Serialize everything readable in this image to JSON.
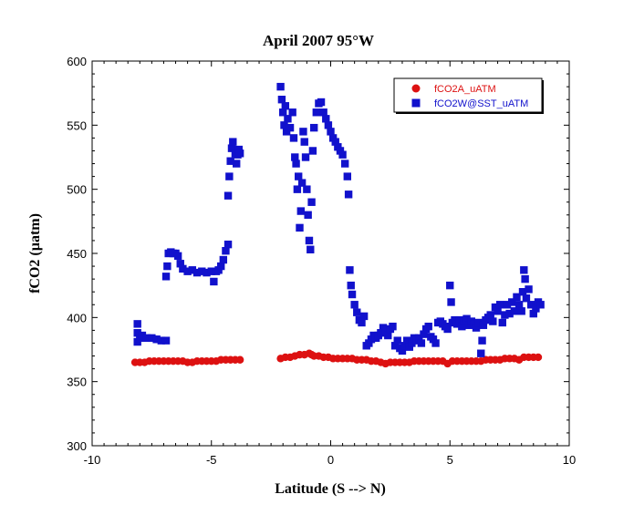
{
  "chart_data": {
    "type": "scatter",
    "title": "April 2007 95°W",
    "xlabel": "Latitude (S --> N)",
    "ylabel": "fCO2 (µatm)",
    "xlim": [
      -10,
      10
    ],
    "ylim": [
      300,
      600
    ],
    "xticks": [
      -10,
      -5,
      0,
      5,
      10
    ],
    "yticks": [
      300,
      350,
      400,
      450,
      500,
      550,
      600
    ],
    "grid": false,
    "legend_position": "top-right",
    "series": [
      {
        "name": "fCO2A_uATM",
        "color": "#dd1111",
        "marker": "circle",
        "points": [
          [
            -8.2,
            365
          ],
          [
            -8.0,
            365
          ],
          [
            -7.8,
            365
          ],
          [
            -7.6,
            366
          ],
          [
            -7.4,
            366
          ],
          [
            -7.2,
            366
          ],
          [
            -7.0,
            366
          ],
          [
            -6.8,
            366
          ],
          [
            -6.6,
            366
          ],
          [
            -6.4,
            366
          ],
          [
            -6.2,
            366
          ],
          [
            -6.0,
            365
          ],
          [
            -5.8,
            365
          ],
          [
            -5.6,
            366
          ],
          [
            -5.4,
            366
          ],
          [
            -5.2,
            366
          ],
          [
            -5.0,
            366
          ],
          [
            -4.8,
            366
          ],
          [
            -4.6,
            367
          ],
          [
            -4.4,
            367
          ],
          [
            -4.2,
            367
          ],
          [
            -4.0,
            367
          ],
          [
            -3.8,
            367
          ],
          [
            -2.1,
            368
          ],
          [
            -1.9,
            369
          ],
          [
            -1.7,
            369
          ],
          [
            -1.5,
            370
          ],
          [
            -1.3,
            371
          ],
          [
            -1.1,
            371
          ],
          [
            -0.9,
            372
          ],
          [
            -0.8,
            371
          ],
          [
            -0.7,
            370
          ],
          [
            -0.5,
            370
          ],
          [
            -0.3,
            369
          ],
          [
            -0.1,
            369
          ],
          [
            0.1,
            368
          ],
          [
            0.3,
            368
          ],
          [
            0.5,
            368
          ],
          [
            0.7,
            368
          ],
          [
            0.9,
            368
          ],
          [
            1.1,
            367
          ],
          [
            1.3,
            367
          ],
          [
            1.5,
            367
          ],
          [
            1.7,
            366
          ],
          [
            1.9,
            366
          ],
          [
            2.1,
            365
          ],
          [
            2.3,
            364
          ],
          [
            2.5,
            365
          ],
          [
            2.7,
            365
          ],
          [
            2.9,
            365
          ],
          [
            3.1,
            365
          ],
          [
            3.3,
            365
          ],
          [
            3.5,
            366
          ],
          [
            3.7,
            366
          ],
          [
            3.9,
            366
          ],
          [
            4.1,
            366
          ],
          [
            4.3,
            366
          ],
          [
            4.5,
            366
          ],
          [
            4.7,
            366
          ],
          [
            4.9,
            364
          ],
          [
            5.1,
            366
          ],
          [
            5.3,
            366
          ],
          [
            5.5,
            366
          ],
          [
            5.7,
            366
          ],
          [
            5.9,
            366
          ],
          [
            6.1,
            366
          ],
          [
            6.3,
            366
          ],
          [
            6.5,
            367
          ],
          [
            6.7,
            367
          ],
          [
            6.9,
            367
          ],
          [
            7.1,
            367
          ],
          [
            7.3,
            368
          ],
          [
            7.5,
            368
          ],
          [
            7.7,
            368
          ],
          [
            7.9,
            367
          ],
          [
            8.1,
            369
          ],
          [
            8.3,
            369
          ],
          [
            8.5,
            369
          ],
          [
            8.7,
            369
          ]
        ]
      },
      {
        "name": "fCO2W@SST_uATM",
        "color": "#1111cc",
        "marker": "square",
        "points": [
          [
            -8.1,
            395
          ],
          [
            -8.1,
            388
          ],
          [
            -8.1,
            381
          ],
          [
            -8.0,
            384
          ],
          [
            -7.9,
            386
          ],
          [
            -7.7,
            384
          ],
          [
            -7.5,
            384
          ],
          [
            -7.3,
            383
          ],
          [
            -7.1,
            382
          ],
          [
            -6.9,
            382
          ],
          [
            -6.9,
            432
          ],
          [
            -6.85,
            440
          ],
          [
            -6.8,
            450
          ],
          [
            -6.7,
            451
          ],
          [
            -6.6,
            450
          ],
          [
            -6.5,
            450
          ],
          [
            -6.4,
            448
          ],
          [
            -6.3,
            442
          ],
          [
            -6.2,
            438
          ],
          [
            -6.0,
            436
          ],
          [
            -5.8,
            437
          ],
          [
            -5.6,
            435
          ],
          [
            -5.4,
            436
          ],
          [
            -5.2,
            435
          ],
          [
            -5.0,
            436
          ],
          [
            -4.9,
            428
          ],
          [
            -4.8,
            436
          ],
          [
            -4.7,
            437
          ],
          [
            -4.6,
            440
          ],
          [
            -4.5,
            445
          ],
          [
            -4.4,
            452
          ],
          [
            -4.3,
            457
          ],
          [
            -4.3,
            495
          ],
          [
            -4.25,
            510
          ],
          [
            -4.2,
            522
          ],
          [
            -4.15,
            532
          ],
          [
            -4.1,
            537
          ],
          [
            -4.0,
            528
          ],
          [
            -3.95,
            520
          ],
          [
            -3.9,
            527
          ],
          [
            -3.85,
            531
          ],
          [
            -3.8,
            528
          ],
          [
            -2.1,
            580
          ],
          [
            -2.05,
            570
          ],
          [
            -2.0,
            560
          ],
          [
            -1.95,
            550
          ],
          [
            -1.9,
            565
          ],
          [
            -1.85,
            545
          ],
          [
            -1.8,
            555
          ],
          [
            -1.7,
            548
          ],
          [
            -1.6,
            560
          ],
          [
            -1.55,
            540
          ],
          [
            -1.5,
            525
          ],
          [
            -1.45,
            520
          ],
          [
            -1.4,
            500
          ],
          [
            -1.35,
            510
          ],
          [
            -1.3,
            470
          ],
          [
            -1.25,
            483
          ],
          [
            -1.2,
            505
          ],
          [
            -1.15,
            545
          ],
          [
            -1.1,
            537
          ],
          [
            -1.05,
            525
          ],
          [
            -1.0,
            500
          ],
          [
            -0.95,
            480
          ],
          [
            -0.9,
            460
          ],
          [
            -0.85,
            453
          ],
          [
            -0.8,
            490
          ],
          [
            -0.75,
            530
          ],
          [
            -0.7,
            548
          ],
          [
            -0.6,
            560
          ],
          [
            -0.5,
            567
          ],
          [
            -0.4,
            568
          ],
          [
            -0.3,
            560
          ],
          [
            -0.2,
            555
          ],
          [
            -0.1,
            550
          ],
          [
            0.0,
            545
          ],
          [
            0.1,
            540
          ],
          [
            0.2,
            537
          ],
          [
            0.3,
            533
          ],
          [
            0.4,
            530
          ],
          [
            0.5,
            527
          ],
          [
            0.6,
            520
          ],
          [
            0.7,
            510
          ],
          [
            0.75,
            496
          ],
          [
            0.8,
            437
          ],
          [
            0.85,
            425
          ],
          [
            0.9,
            418
          ],
          [
            1.0,
            410
          ],
          [
            1.1,
            404
          ],
          [
            1.2,
            398
          ],
          [
            1.3,
            396
          ],
          [
            1.4,
            401
          ],
          [
            1.5,
            378
          ],
          [
            1.6,
            380
          ],
          [
            1.7,
            383
          ],
          [
            1.8,
            386
          ],
          [
            1.9,
            384
          ],
          [
            2.0,
            386
          ],
          [
            2.1,
            388
          ],
          [
            2.2,
            392
          ],
          [
            2.3,
            390
          ],
          [
            2.4,
            386
          ],
          [
            2.5,
            391
          ],
          [
            2.6,
            393
          ],
          [
            2.7,
            378
          ],
          [
            2.8,
            382
          ],
          [
            2.9,
            376
          ],
          [
            3.0,
            374
          ],
          [
            3.1,
            378
          ],
          [
            3.2,
            382
          ],
          [
            3.3,
            377
          ],
          [
            3.4,
            380
          ],
          [
            3.5,
            384
          ],
          [
            3.6,
            382
          ],
          [
            3.7,
            384
          ],
          [
            3.8,
            380
          ],
          [
            3.9,
            387
          ],
          [
            4.0,
            391
          ],
          [
            4.1,
            393
          ],
          [
            4.2,
            385
          ],
          [
            4.3,
            383
          ],
          [
            4.4,
            380
          ],
          [
            4.5,
            396
          ],
          [
            4.6,
            397
          ],
          [
            4.7,
            395
          ],
          [
            4.8,
            393
          ],
          [
            4.9,
            391
          ],
          [
            5.0,
            425
          ],
          [
            5.05,
            412
          ],
          [
            5.1,
            396
          ],
          [
            5.2,
            398
          ],
          [
            5.3,
            395
          ],
          [
            5.4,
            398
          ],
          [
            5.5,
            393
          ],
          [
            5.6,
            397
          ],
          [
            5.7,
            399
          ],
          [
            5.8,
            394
          ],
          [
            5.9,
            397
          ],
          [
            6.0,
            395
          ],
          [
            6.1,
            392
          ],
          [
            6.2,
            396
          ],
          [
            6.3,
            372
          ],
          [
            6.35,
            382
          ],
          [
            6.4,
            394
          ],
          [
            6.5,
            398
          ],
          [
            6.6,
            400
          ],
          [
            6.7,
            402
          ],
          [
            6.8,
            397
          ],
          [
            6.9,
            408
          ],
          [
            7.0,
            405
          ],
          [
            7.1,
            410
          ],
          [
            7.2,
            396
          ],
          [
            7.3,
            402
          ],
          [
            7.4,
            410
          ],
          [
            7.5,
            403
          ],
          [
            7.6,
            412
          ],
          [
            7.7,
            405
          ],
          [
            7.8,
            416
          ],
          [
            7.9,
            410
          ],
          [
            8.0,
            405
          ],
          [
            8.05,
            420
          ],
          [
            8.1,
            437
          ],
          [
            8.15,
            430
          ],
          [
            8.2,
            415
          ],
          [
            8.3,
            422
          ],
          [
            8.4,
            410
          ],
          [
            8.5,
            403
          ],
          [
            8.6,
            407
          ],
          [
            8.7,
            412
          ],
          [
            8.8,
            410
          ]
        ]
      }
    ]
  }
}
